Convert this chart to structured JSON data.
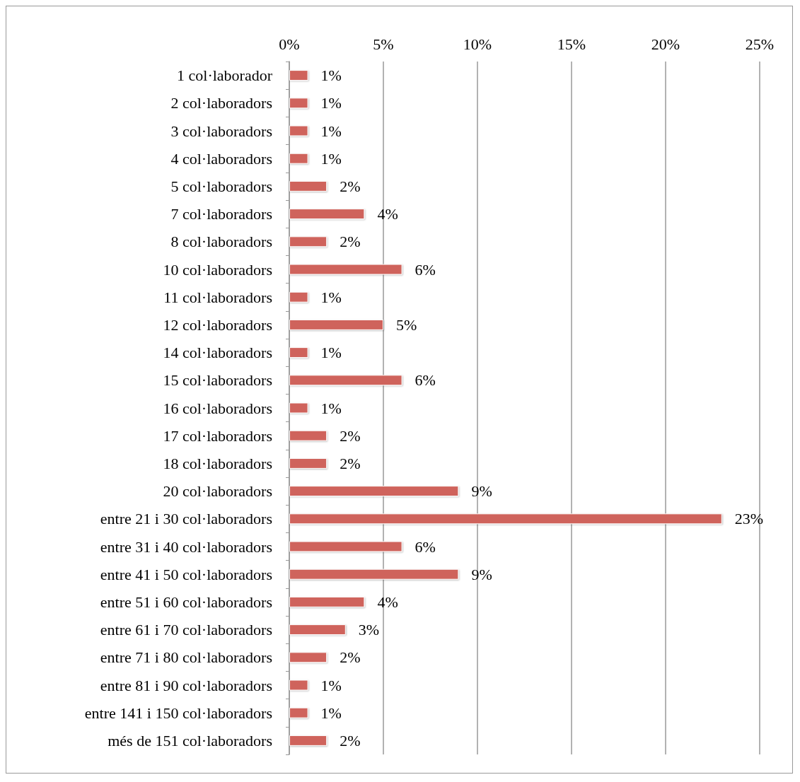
{
  "chart_data": {
    "type": "bar",
    "orientation": "horizontal",
    "categories": [
      "1 col·laborador",
      "2 col·laboradors",
      "3 col·laboradors",
      "4 col·laboradors",
      "5 col·laboradors",
      "7 col·laboradors",
      "8 col·laboradors",
      "10 col·laboradors",
      "11 col·laboradors",
      "12 col·laboradors",
      "14 col·laboradors",
      "15 col·laboradors",
      "16 col·laboradors",
      "17 col·laboradors",
      "18 col·laboradors",
      "20 col·laboradors",
      "entre 21 i 30 col·laboradors",
      "entre 31 i 40 col·laboradors",
      "entre 41 i 50 col·laboradors",
      "entre 51 i 60 col·laboradors",
      "entre 61 i 70 col·laboradors",
      "entre 71 i 80 col·laboradors",
      "entre 81 i 90 col·laboradors",
      "entre 141 i 150 col·laboradors",
      "més de 151 col·laboradors"
    ],
    "values": [
      1,
      1,
      1,
      1,
      2,
      4,
      2,
      6,
      1,
      5,
      1,
      6,
      1,
      2,
      2,
      9,
      23,
      6,
      9,
      4,
      3,
      2,
      1,
      1,
      2
    ],
    "value_labels": [
      "1%",
      "1%",
      "1%",
      "1%",
      "2%",
      "4%",
      "2%",
      "6%",
      "1%",
      "5%",
      "1%",
      "6%",
      "1%",
      "2%",
      "2%",
      "9%",
      "23%",
      "6%",
      "9%",
      "4%",
      "3%",
      "2%",
      "1%",
      "1%",
      "2%"
    ],
    "color": "#cf645c",
    "xlim": [
      0,
      25
    ],
    "xticks": [
      {
        "value": 0,
        "label": "0%"
      },
      {
        "value": 5,
        "label": "5%"
      },
      {
        "value": 10,
        "label": "10%"
      },
      {
        "value": 15,
        "label": "15%"
      },
      {
        "value": 20,
        "label": "20%"
      },
      {
        "value": 25,
        "label": "25%"
      }
    ],
    "grid": "x"
  }
}
